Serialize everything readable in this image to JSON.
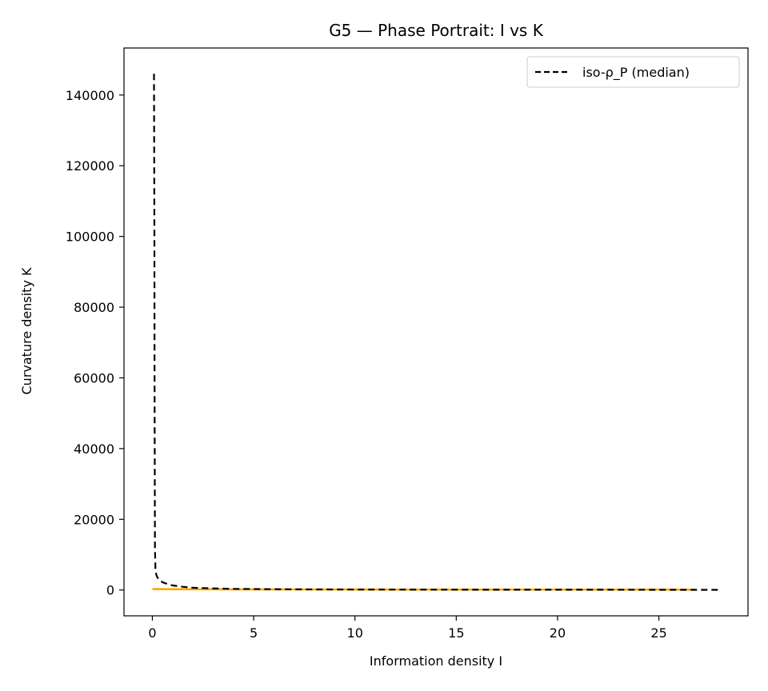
{
  "chart_data": {
    "type": "line",
    "title": "G5 — Phase Portrait: I vs K",
    "xlabel": "Information density I",
    "ylabel": "Curvature density K",
    "xlim": [
      -1.4,
      29.4
    ],
    "ylim": [
      -7300,
      153300
    ],
    "xticks": [
      0,
      5,
      10,
      15,
      20,
      25
    ],
    "yticks": [
      0,
      20000,
      40000,
      60000,
      80000,
      100000,
      120000,
      140000
    ],
    "grid": false,
    "legend": {
      "placement": "top-right",
      "entries": [
        "iso-ρ_P (median)"
      ]
    },
    "series": [
      {
        "name": "iso-ρ_P (median)",
        "style": "dashed",
        "color": "#000000",
        "x": [
          0.08,
          0.1,
          0.11,
          0.12,
          0.13,
          0.15,
          0.2,
          0.3,
          0.4,
          0.5,
          0.7,
          1.0,
          1.5,
          2.0,
          3.0,
          4.0,
          6.0,
          8.0,
          10.0,
          14.0,
          18.0,
          22.0,
          26.0,
          28.0
        ],
        "y": [
          146000,
          100000,
          60000,
          30000,
          12000,
          6000,
          4200,
          3000,
          2600,
          2200,
          1800,
          1300,
          900,
          650,
          450,
          330,
          230,
          170,
          140,
          100,
          80,
          65,
          55,
          50
        ]
      },
      {
        "color": "#ffa500",
        "style": "solid",
        "x": [
          0.0,
          2.0,
          5.0,
          10.0,
          15.0,
          20.0,
          25.0,
          26.8
        ],
        "y": [
          250,
          200,
          180,
          150,
          130,
          120,
          110,
          100
        ]
      }
    ]
  }
}
